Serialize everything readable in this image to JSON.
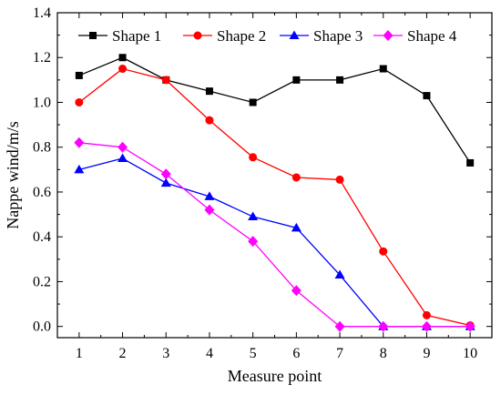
{
  "chart_data": {
    "type": "line",
    "title": "",
    "xlabel": "Measure point",
    "ylabel": "Nappe wind/m/s",
    "categories": [
      1,
      2,
      3,
      4,
      5,
      6,
      7,
      8,
      9,
      10
    ],
    "xlim": [
      0.5,
      10.5
    ],
    "ylim": [
      -0.05,
      1.4
    ],
    "xticks": [
      "1",
      "2",
      "3",
      "4",
      "5",
      "6",
      "7",
      "8",
      "9",
      "10"
    ],
    "yticks": [
      "0.0",
      "0.2",
      "0.4",
      "0.6",
      "0.8",
      "1.0",
      "1.2",
      "1.4"
    ],
    "grid": false,
    "legend_position": "top",
    "series": [
      {
        "name": "Shape 1",
        "color": "#000000",
        "marker": "square",
        "values": [
          1.12,
          1.2,
          1.1,
          1.05,
          1.0,
          1.1,
          1.1,
          1.15,
          1.03,
          0.73
        ]
      },
      {
        "name": "Shape 2",
        "color": "#ff0000",
        "marker": "circle",
        "values": [
          1.0,
          1.15,
          1.1,
          0.92,
          0.755,
          0.665,
          0.655,
          0.335,
          0.05,
          0.005
        ]
      },
      {
        "name": "Shape 3",
        "color": "#0000ff",
        "marker": "triangle",
        "values": [
          0.7,
          0.75,
          0.64,
          0.58,
          0.49,
          0.44,
          0.23,
          0.0,
          0.0,
          0.0
        ]
      },
      {
        "name": "Shape 4",
        "color": "#ff00ff",
        "marker": "diamond",
        "values": [
          0.82,
          0.8,
          0.68,
          0.52,
          0.38,
          0.16,
          0.0,
          0.0,
          0.0,
          0.0
        ]
      }
    ]
  }
}
